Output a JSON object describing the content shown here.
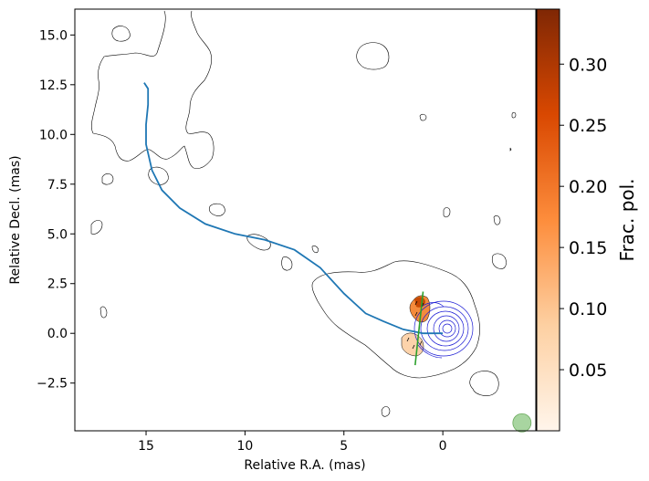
{
  "chart_data": {
    "type": "contour",
    "xlabel": "Relative R.A. (mas)",
    "ylabel": "Relative Decl. (mas)",
    "xlim": [
      18.6,
      -4.7
    ],
    "ylim": [
      -4.9,
      16.3
    ],
    "x_ticks": [
      15,
      10,
      5,
      0
    ],
    "y_ticks": [
      -2.5,
      0.0,
      2.5,
      5.0,
      7.5,
      10.0,
      12.5,
      15.0
    ],
    "x_tick_labels": [
      "15",
      "10",
      "5",
      "0"
    ],
    "y_tick_labels": [
      "−2.5",
      "0.0",
      "2.5",
      "5.0",
      "7.5",
      "10.0",
      "12.5",
      "15.0"
    ],
    "colorbar": {
      "label": "Frac. pol.",
      "range": [
        0.0,
        0.345
      ],
      "ticks": [
        0.05,
        0.1,
        0.15,
        0.2,
        0.25,
        0.3
      ],
      "tick_labels": [
        "0.05",
        "0.10",
        "0.15",
        "0.20",
        "0.25",
        "0.30"
      ],
      "colormap": "Oranges",
      "colors": [
        "#fff5eb",
        "#fdd0a2",
        "#fd8d3c",
        "#d94801",
        "#7f2704"
      ]
    },
    "series": [
      {
        "style": "jet ridge line",
        "color": "#1f77b4",
        "points": [
          [
            15.1,
            12.6
          ],
          [
            14.9,
            12.3
          ],
          [
            14.9,
            11.5
          ],
          [
            15.0,
            10.5
          ],
          [
            15.0,
            9.5
          ],
          [
            14.7,
            8.2
          ],
          [
            14.2,
            7.2
          ],
          [
            13.3,
            6.3
          ],
          [
            12.0,
            5.5
          ],
          [
            10.5,
            5.0
          ],
          [
            9.0,
            4.7
          ],
          [
            7.5,
            4.2
          ],
          [
            6.2,
            3.3
          ],
          [
            5.0,
            2.0
          ],
          [
            3.9,
            1.0
          ],
          [
            3.0,
            0.6
          ],
          [
            2.0,
            0.2
          ],
          [
            1.0,
            0.0
          ],
          [
            0.0,
            0.0
          ]
        ]
      },
      {
        "style": "polarization axis line",
        "color": "#2ca02c",
        "points": [
          [
            1.0,
            2.1
          ],
          [
            1.4,
            -1.6
          ]
        ]
      }
    ],
    "beam": {
      "x": -4.0,
      "y": -4.5,
      "color": "#a8d5a0"
    },
    "outer_contour_color": "#000000",
    "inner_contour_color": "#0000cc"
  }
}
